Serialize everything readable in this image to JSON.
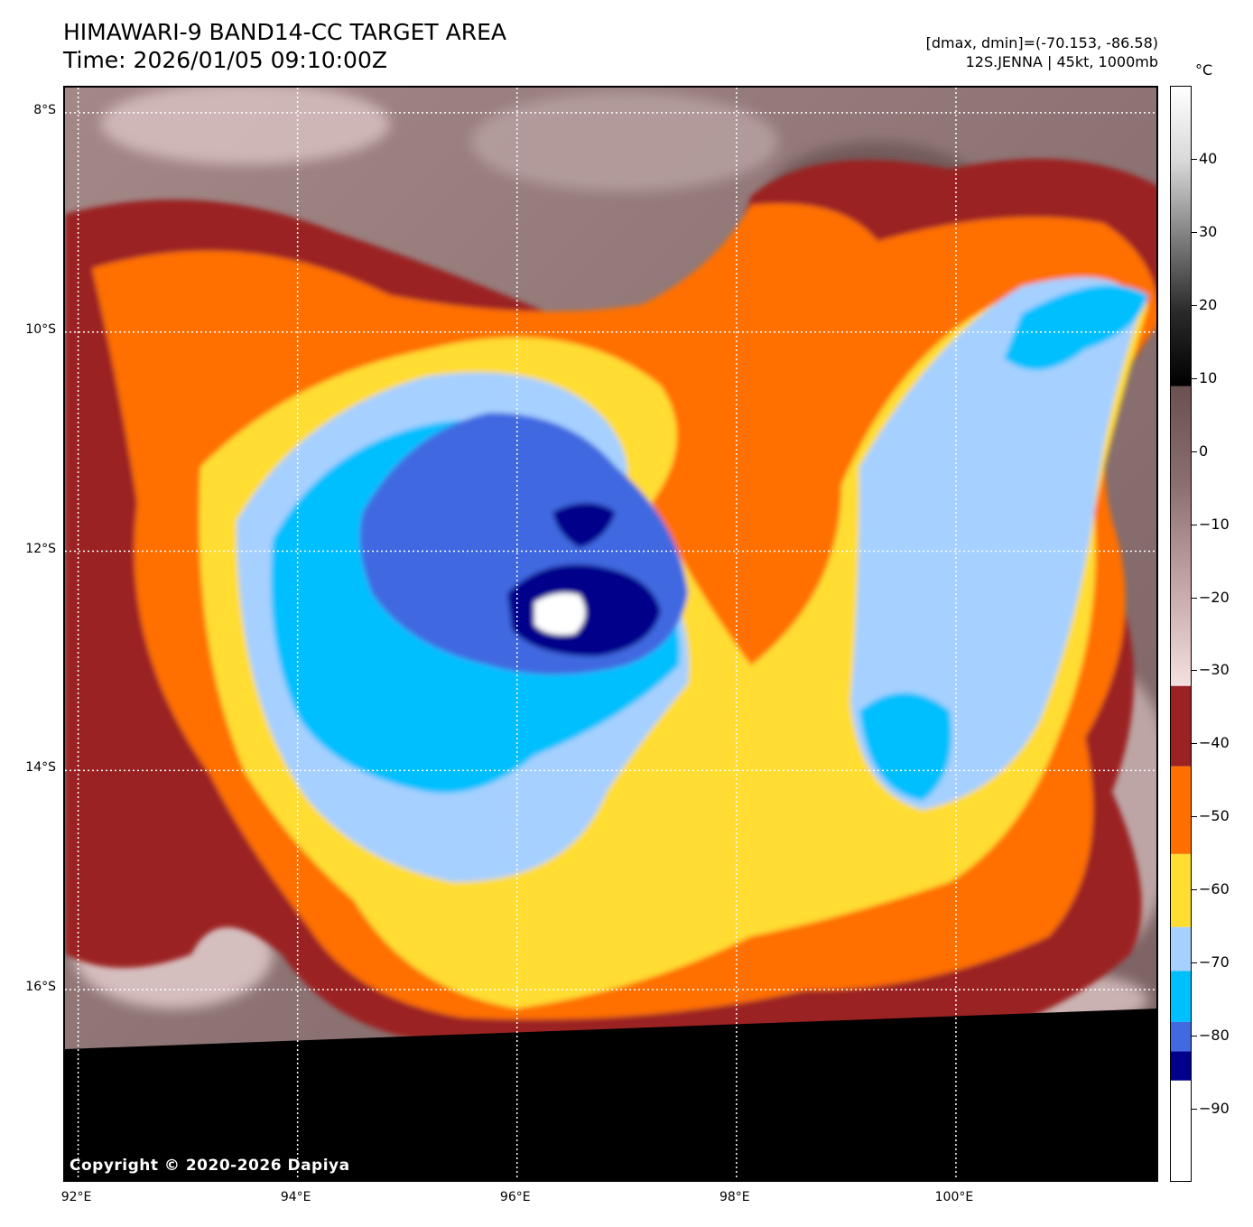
{
  "header": {
    "title": "HIMAWARI-9 BAND14-CC TARGET AREA",
    "time": "Time: 2026/01/05 09:10:00Z",
    "range": "[dmax, dmin]=(-70.153, -86.58)",
    "storm": "12S.JENNA | 45kt, 1000mb"
  },
  "map": {
    "copyright": "Copyright © 2020-2026 Dapiya",
    "lat_labels": [
      "8°S",
      "10°S",
      "12°S",
      "14°S",
      "16°S"
    ],
    "lon_labels": [
      "92°E",
      "94°E",
      "96°E",
      "98°E",
      "100°E"
    ],
    "lat_values": [
      -8,
      -10,
      -12,
      -14,
      -16
    ],
    "lon_values": [
      92,
      94,
      96,
      98,
      100
    ],
    "extent": {
      "lon_min": 91.88,
      "lon_max": 101.86,
      "lat_max": -7.77,
      "lat_min": -17.77
    },
    "features": [
      "Tropical cyclone 12S Jenna cloud shield",
      "Coldest cloud tops (below -80 °C) near 96.5°E 12.5°S",
      "No-data region (black) south of about 16.3°S"
    ]
  },
  "colorbar": {
    "unit": "°C",
    "tick_labels": [
      "40",
      "30",
      "20",
      "10",
      "0",
      "−10",
      "−20",
      "−30",
      "−40",
      "−50",
      "−60",
      "−70",
      "−80",
      "−90"
    ],
    "tick_values": [
      40,
      30,
      20,
      10,
      0,
      -10,
      -20,
      -30,
      -40,
      -50,
      -60,
      -70,
      -80,
      -90
    ],
    "range": [
      -100,
      50
    ],
    "segments": [
      {
        "from": -100,
        "to": -86,
        "color": "#ffffff"
      },
      {
        "from": -86,
        "to": -82,
        "color": "#00008b"
      },
      {
        "from": -82,
        "to": -78,
        "color": "#4169e1"
      },
      {
        "from": -78,
        "to": -71,
        "color": "#00bfff"
      },
      {
        "from": -71,
        "to": -65,
        "color": "#a6d0ff"
      },
      {
        "from": -65,
        "to": -55,
        "color": "#ffdd33"
      },
      {
        "from": -55,
        "to": -43,
        "color": "#ff7000"
      },
      {
        "from": -43,
        "to": -32,
        "color": "#9b2222"
      },
      {
        "from": -32,
        "to": 9,
        "gradient": [
          "#f5e0e0",
          "#c4a6a6",
          "#8c7070",
          "#6b5050"
        ]
      },
      {
        "from": 9,
        "to": 50,
        "gradient": [
          "#000000",
          "#2a2a2a",
          "#808080",
          "#d8d8d8",
          "#ffffff"
        ]
      }
    ]
  }
}
